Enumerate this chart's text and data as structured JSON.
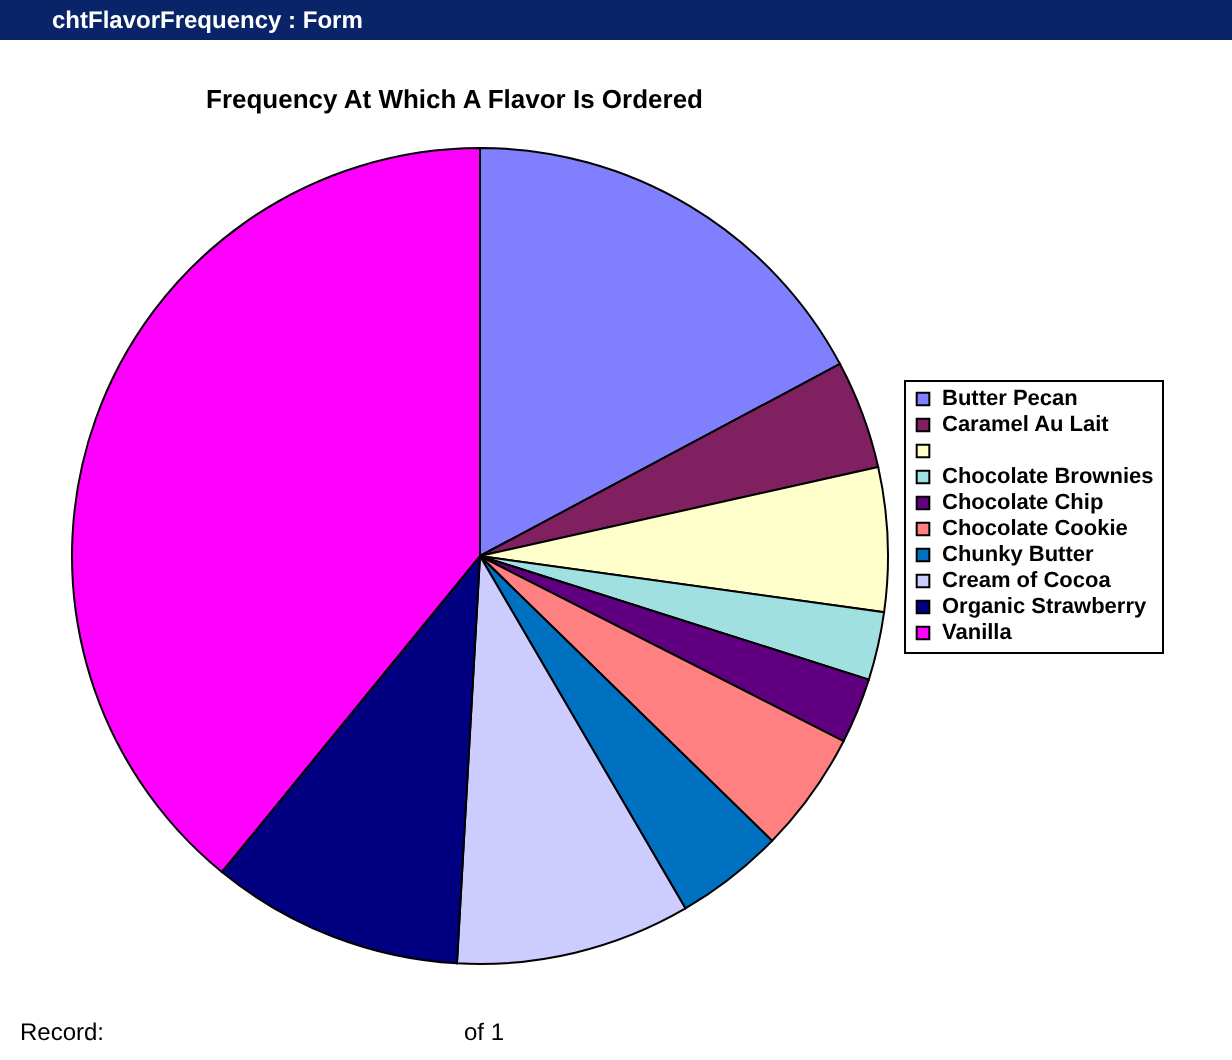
{
  "chart_data": {
    "type": "pie",
    "title": "Frequency At Which A Flavor Is Ordered",
    "categories": [
      "Butter Pecan",
      "Caramel Au Lait",
      null,
      "Chocolate Brownies",
      "Chocolate Chip",
      "Chocolate Cookie",
      "Chunky Butter",
      "Cream of Cocoa",
      "Organic Strawberry",
      "Vanilla"
    ],
    "values": [
      17.2,
      4.3,
      5.7,
      2.7,
      2.6,
      4.8,
      4.3,
      9.3,
      10,
      39.1
    ],
    "colors": [
      "#8080ff",
      "#802060",
      "#ffffcc",
      "#a0e0e0",
      "#600080",
      "#ff8080",
      "#0070c0",
      "#ccccff",
      "#000080",
      "#ff00ff"
    ],
    "legend": "right",
    "annotations": [
      "chtFlavorFrequency : Form",
      "Record:",
      "of  1"
    ]
  }
}
